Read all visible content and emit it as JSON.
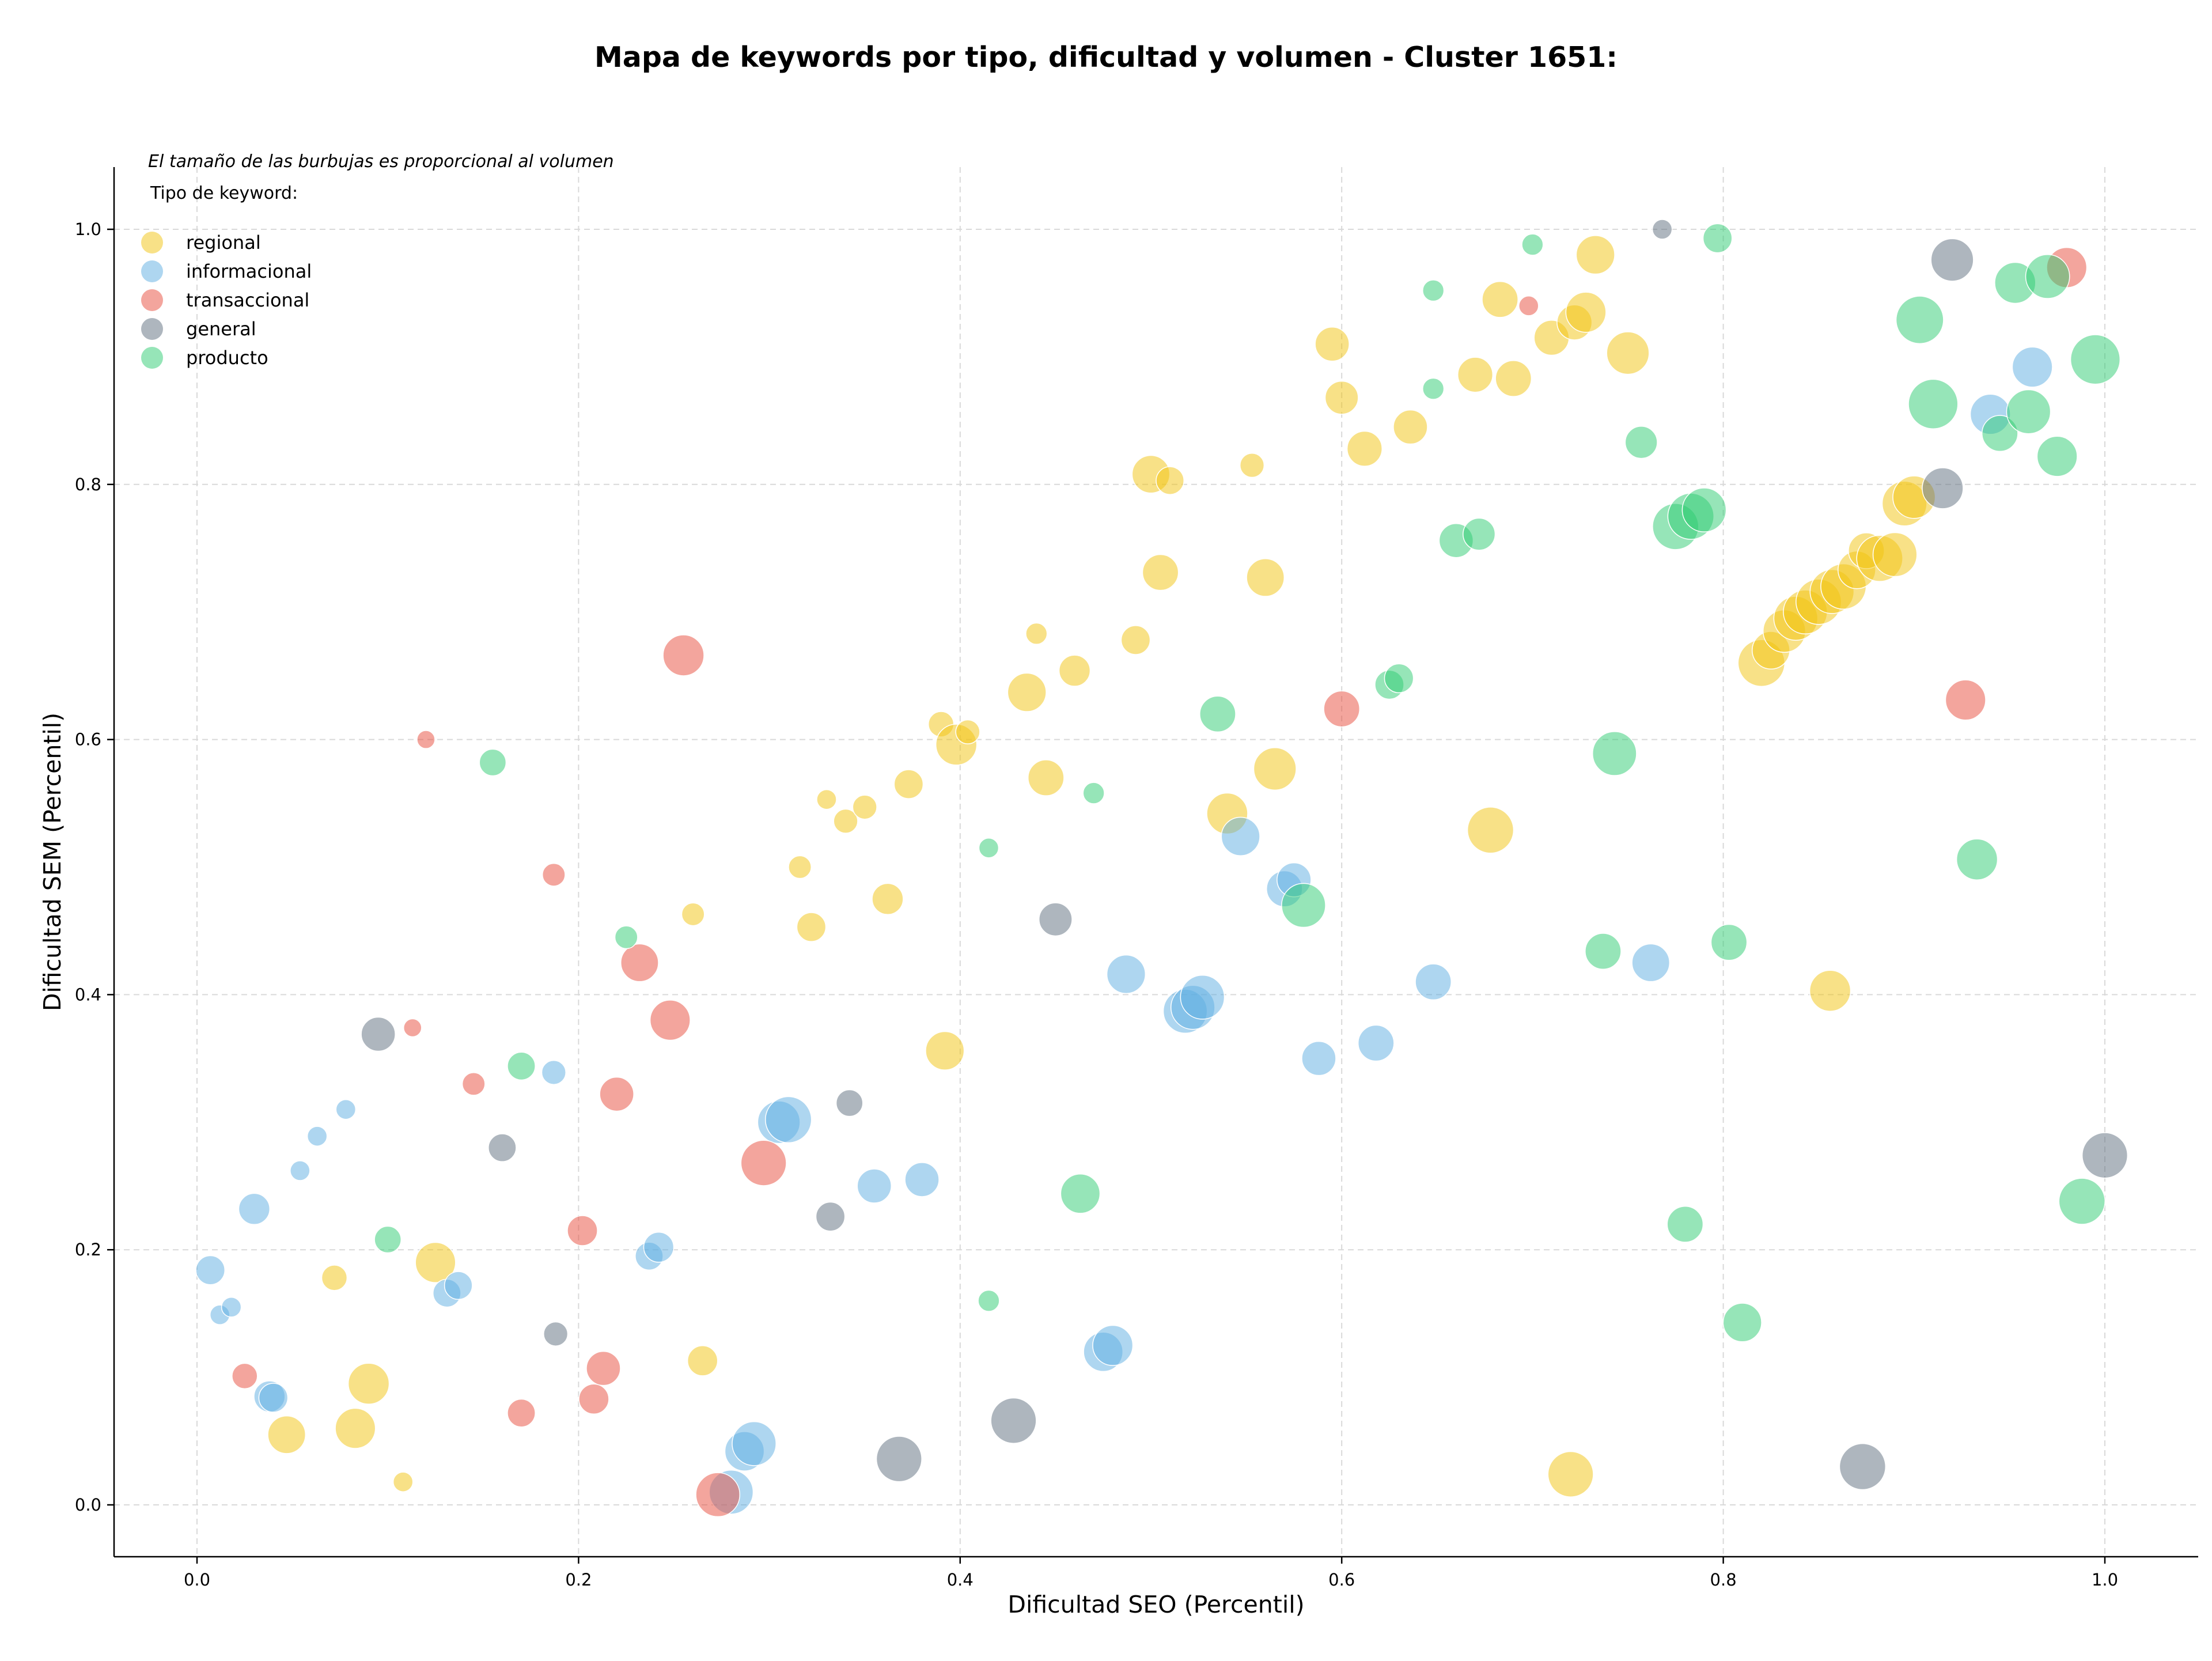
{
  "chart_data": {
    "type": "scatter",
    "title": "Mapa de keywords por tipo, dificultad y volumen - Cluster 1651:",
    "xlabel": "Dificultad SEO (Percentil)",
    "ylabel": "Dificultad SEM (Percentil)",
    "xlim": [
      -0.04,
      1.05
    ],
    "ylim": [
      -0.04,
      1.05
    ],
    "xticks": [
      "0.0",
      "0.2",
      "0.4",
      "0.6",
      "0.8",
      "1.0"
    ],
    "yticks": [
      "0.0",
      "0.2",
      "0.4",
      "0.6",
      "0.8",
      "1.0"
    ],
    "grid": true,
    "legend": {
      "placement": "top-left",
      "note": "El tamaño de las burbujas es proporcional al volumen",
      "title": "Tipo de keyword:"
    },
    "series": [
      {
        "name": "regional",
        "color": "#f1c40f",
        "points": [
          [
            0.047,
            0.055,
            2.2
          ],
          [
            0.083,
            0.06,
            2.5
          ],
          [
            0.09,
            0.095,
            2.6
          ],
          [
            0.072,
            0.178,
            1.0
          ],
          [
            0.108,
            0.018,
            0.6
          ],
          [
            0.125,
            0.19,
            2.5
          ],
          [
            0.265,
            0.113,
            1.4
          ],
          [
            0.26,
            0.463,
            0.8
          ],
          [
            0.316,
            0.5,
            0.8
          ],
          [
            0.322,
            0.453,
            1.3
          ],
          [
            0.33,
            0.553,
            0.6
          ],
          [
            0.34,
            0.536,
            0.9
          ],
          [
            0.35,
            0.547,
            0.9
          ],
          [
            0.362,
            0.475,
            1.5
          ],
          [
            0.373,
            0.565,
            1.3
          ],
          [
            0.39,
            0.612,
            1.0
          ],
          [
            0.398,
            0.596,
            2.6
          ],
          [
            0.404,
            0.606,
            0.9
          ],
          [
            0.392,
            0.356,
            2.3
          ],
          [
            0.435,
            0.637,
            2.3
          ],
          [
            0.44,
            0.683,
            0.7
          ],
          [
            0.445,
            0.57,
            2.0
          ],
          [
            0.46,
            0.654,
            1.5
          ],
          [
            0.492,
            0.678,
            1.3
          ],
          [
            0.505,
            0.731,
            2.0
          ],
          [
            0.5,
            0.808,
            2.2
          ],
          [
            0.51,
            0.803,
            1.2
          ],
          [
            0.54,
            0.542,
            2.6
          ],
          [
            0.553,
            0.815,
            0.9
          ],
          [
            0.56,
            0.727,
            2.2
          ],
          [
            0.565,
            0.577,
            2.8
          ],
          [
            0.595,
            0.91,
            1.8
          ],
          [
            0.6,
            0.868,
            1.7
          ],
          [
            0.612,
            0.828,
            1.9
          ],
          [
            0.636,
            0.845,
            1.8
          ],
          [
            0.67,
            0.886,
            1.9
          ],
          [
            0.683,
            0.945,
            2.0
          ],
          [
            0.69,
            0.883,
            2.0
          ],
          [
            0.71,
            0.915,
            1.9
          ],
          [
            0.722,
            0.927,
            1.9
          ],
          [
            0.728,
            0.935,
            2.5
          ],
          [
            0.733,
            0.98,
            2.3
          ],
          [
            0.75,
            0.903,
            2.8
          ],
          [
            0.678,
            0.529,
            3.3
          ],
          [
            0.72,
            0.024,
            3.2
          ],
          [
            0.856,
            0.403,
            2.6
          ],
          [
            0.82,
            0.66,
            3.4
          ],
          [
            0.825,
            0.67,
            2.2
          ],
          [
            0.832,
            0.685,
            2.8
          ],
          [
            0.838,
            0.695,
            3.0
          ],
          [
            0.843,
            0.7,
            3.0
          ],
          [
            0.85,
            0.708,
            3.2
          ],
          [
            0.857,
            0.716,
            3.0
          ],
          [
            0.863,
            0.72,
            3.2
          ],
          [
            0.87,
            0.733,
            2.2
          ],
          [
            0.875,
            0.748,
            2.0
          ],
          [
            0.882,
            0.742,
            3.3
          ],
          [
            0.89,
            0.745,
            3.0
          ],
          [
            0.895,
            0.785,
            3.1
          ],
          [
            0.9,
            0.79,
            2.8
          ]
        ]
      },
      {
        "name": "informacional",
        "color": "#5dade2",
        "points": [
          [
            0.007,
            0.184,
            1.3
          ],
          [
            0.012,
            0.149,
            0.6
          ],
          [
            0.018,
            0.155,
            0.6
          ],
          [
            0.03,
            0.232,
            1.5
          ],
          [
            0.038,
            0.085,
            1.5
          ],
          [
            0.04,
            0.084,
            1.3
          ],
          [
            0.054,
            0.262,
            0.6
          ],
          [
            0.063,
            0.289,
            0.6
          ],
          [
            0.078,
            0.31,
            0.6
          ],
          [
            0.131,
            0.166,
            1.2
          ],
          [
            0.137,
            0.172,
            1.2
          ],
          [
            0.187,
            0.339,
            0.9
          ],
          [
            0.237,
            0.195,
            1.2
          ],
          [
            0.242,
            0.202,
            1.4
          ],
          [
            0.28,
            0.01,
            3.0
          ],
          [
            0.287,
            0.042,
            2.4
          ],
          [
            0.292,
            0.048,
            3.0
          ],
          [
            0.305,
            0.3,
            2.8
          ],
          [
            0.31,
            0.302,
            3.3
          ],
          [
            0.355,
            0.25,
            1.8
          ],
          [
            0.38,
            0.255,
            1.8
          ],
          [
            0.475,
            0.12,
            2.4
          ],
          [
            0.48,
            0.125,
            2.5
          ],
          [
            0.487,
            0.416,
            2.3
          ],
          [
            0.518,
            0.387,
            3.0
          ],
          [
            0.522,
            0.39,
            3.0
          ],
          [
            0.527,
            0.398,
            3.0
          ],
          [
            0.547,
            0.524,
            2.3
          ],
          [
            0.57,
            0.483,
            2.0
          ],
          [
            0.575,
            0.49,
            1.8
          ],
          [
            0.588,
            0.35,
            1.8
          ],
          [
            0.618,
            0.362,
            2.0
          ],
          [
            0.648,
            0.41,
            2.0
          ],
          [
            0.762,
            0.425,
            2.2
          ],
          [
            0.94,
            0.855,
            2.5
          ],
          [
            0.962,
            0.892,
            2.5
          ]
        ]
      },
      {
        "name": "transaccional",
        "color": "#e74c3c",
        "points": [
          [
            0.025,
            0.101,
            1.0
          ],
          [
            0.113,
            0.374,
            0.5
          ],
          [
            0.12,
            0.6,
            0.5
          ],
          [
            0.145,
            0.33,
            0.8
          ],
          [
            0.17,
            0.072,
            1.2
          ],
          [
            0.187,
            0.494,
            0.8
          ],
          [
            0.202,
            0.215,
            1.4
          ],
          [
            0.208,
            0.083,
            1.4
          ],
          [
            0.213,
            0.107,
            1.8
          ],
          [
            0.22,
            0.322,
            1.8
          ],
          [
            0.232,
            0.425,
            2.2
          ],
          [
            0.248,
            0.38,
            2.5
          ],
          [
            0.255,
            0.666,
            2.6
          ],
          [
            0.273,
            0.008,
            3.0
          ],
          [
            0.297,
            0.268,
            3.2
          ],
          [
            0.6,
            0.624,
            2.0
          ],
          [
            0.698,
            0.94,
            0.6
          ],
          [
            0.927,
            0.631,
            2.5
          ],
          [
            0.98,
            0.97,
            2.5
          ]
        ]
      },
      {
        "name": "general",
        "color": "#5d6d7e",
        "points": [
          [
            0.095,
            0.369,
            1.8
          ],
          [
            0.16,
            0.28,
            1.2
          ],
          [
            0.188,
            0.134,
            0.9
          ],
          [
            0.332,
            0.226,
            1.3
          ],
          [
            0.342,
            0.315,
            1.1
          ],
          [
            0.368,
            0.036,
            3.2
          ],
          [
            0.428,
            0.066,
            3.2
          ],
          [
            0.45,
            0.459,
            1.7
          ],
          [
            0.768,
            1.0,
            0.6
          ],
          [
            0.873,
            0.03,
            3.3
          ],
          [
            0.915,
            0.797,
            2.6
          ],
          [
            0.92,
            0.976,
            2.8
          ],
          [
            1.0,
            0.274,
            3.2
          ]
        ]
      },
      {
        "name": "producto",
        "color": "#2ecc71",
        "points": [
          [
            0.1,
            0.208,
            1.1
          ],
          [
            0.155,
            0.582,
            1.1
          ],
          [
            0.17,
            0.344,
            1.2
          ],
          [
            0.225,
            0.445,
            0.8
          ],
          [
            0.415,
            0.515,
            0.6
          ],
          [
            0.415,
            0.16,
            0.7
          ],
          [
            0.463,
            0.244,
            2.4
          ],
          [
            0.47,
            0.558,
            0.7
          ],
          [
            0.535,
            0.62,
            2.0
          ],
          [
            0.58,
            0.47,
            3.0
          ],
          [
            0.625,
            0.643,
            1.3
          ],
          [
            0.63,
            0.648,
            1.3
          ],
          [
            0.648,
            0.952,
            0.7
          ],
          [
            0.648,
            0.875,
            0.7
          ],
          [
            0.66,
            0.756,
            1.8
          ],
          [
            0.672,
            0.761,
            1.6
          ],
          [
            0.7,
            0.988,
            0.7
          ],
          [
            0.737,
            0.434,
            2.0
          ],
          [
            0.743,
            0.589,
            3.0
          ],
          [
            0.757,
            0.833,
            1.6
          ],
          [
            0.775,
            0.767,
            3.3
          ],
          [
            0.783,
            0.775,
            3.3
          ],
          [
            0.79,
            0.78,
            3.0
          ],
          [
            0.78,
            0.22,
            2.0
          ],
          [
            0.797,
            0.993,
            1.3
          ],
          [
            0.803,
            0.441,
            2.0
          ],
          [
            0.81,
            0.143,
            2.3
          ],
          [
            0.903,
            0.929,
            3.5
          ],
          [
            0.91,
            0.863,
            3.8
          ],
          [
            0.933,
            0.506,
            2.6
          ],
          [
            0.945,
            0.84,
            2.0
          ],
          [
            0.953,
            0.958,
            2.6
          ],
          [
            0.96,
            0.857,
            3.0
          ],
          [
            0.97,
            0.963,
            3.0
          ],
          [
            0.975,
            0.822,
            2.5
          ],
          [
            0.988,
            0.238,
            3.3
          ],
          [
            0.995,
            0.898,
            3.8
          ]
        ]
      }
    ]
  }
}
